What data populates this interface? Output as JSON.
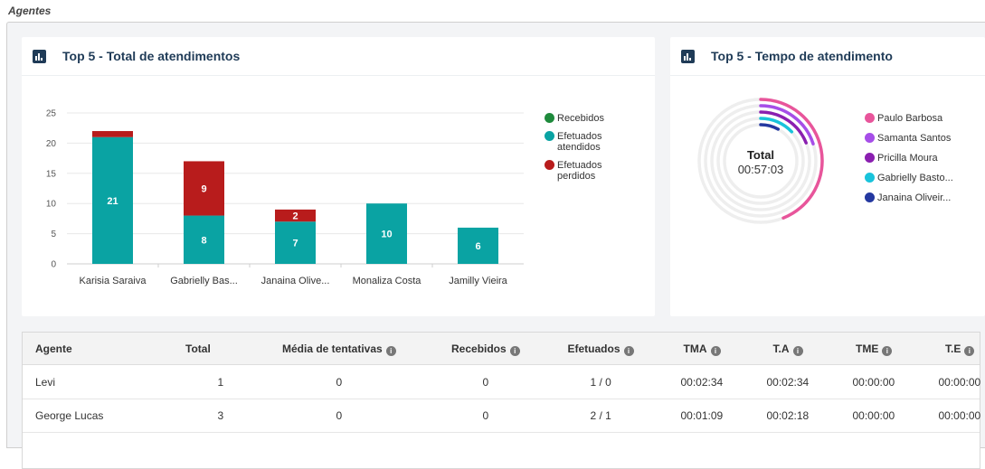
{
  "section_title": "Agentes",
  "card1": {
    "title": "Top 5 - Total de atendimentos",
    "icon": "bar-chart-icon"
  },
  "card2": {
    "title": "Top 5 - Tempo de atendimento",
    "icon": "bar-chart-icon"
  },
  "chart_data": [
    {
      "type": "bar",
      "stacked": true,
      "categories": [
        "Karisia Saraiva",
        "Gabrielly Bas...",
        "Janaina Olive...",
        "Monaliza Costa",
        "Jamilly Vieira"
      ],
      "series": [
        {
          "name": "Recebidos",
          "color": "#1e8a3c",
          "values": [
            0,
            0,
            0,
            0,
            0
          ]
        },
        {
          "name": "Efetuados atendidos",
          "color": "#0aa3a3",
          "values": [
            21,
            8,
            7,
            10,
            6
          ]
        },
        {
          "name": "Efetuados perdidos",
          "color": "#b81c1c",
          "values": [
            1,
            9,
            2,
            0,
            0
          ]
        }
      ],
      "data_labels": [
        [
          "",
          "21",
          ""
        ],
        [
          "",
          "8",
          "9"
        ],
        [
          "",
          "7",
          "2"
        ],
        [
          "",
          "10",
          ""
        ],
        [
          "",
          "6",
          ""
        ]
      ],
      "legend_lines": [
        [
          "Recebidos"
        ],
        [
          "Efetuados",
          "atendidos"
        ],
        [
          "Efetuados",
          "perdidos"
        ]
      ],
      "yticks": [
        "0",
        "5",
        "10",
        "15",
        "20",
        "25"
      ],
      "ylim": [
        0,
        25
      ],
      "legend": "right",
      "grid": true
    },
    {
      "type": "radial",
      "center_label": "Total",
      "center_value": "00:57:03",
      "series": [
        {
          "name": "Paulo Barbosa",
          "color": "#e8559b",
          "fraction": 0.44
        },
        {
          "name": "Samanta Santos",
          "color": "#a64ee8",
          "fraction": 0.2
        },
        {
          "name": "Pricilla Moura",
          "color": "#8a1fb0",
          "fraction": 0.19
        },
        {
          "name": "Gabrielly Basto...",
          "color": "#19c3db",
          "fraction": 0.13
        },
        {
          "name": "Janaina Oliveir...",
          "color": "#2438a0",
          "fraction": 0.08
        }
      ],
      "legend": "right"
    }
  ],
  "table": {
    "headers": [
      {
        "label": "Agente",
        "info": false
      },
      {
        "label": "Total",
        "info": false
      },
      {
        "label": "Média de tentativas",
        "info": true
      },
      {
        "label": "Recebidos",
        "info": true
      },
      {
        "label": "Efetuados",
        "info": true
      },
      {
        "label": "TMA",
        "info": true
      },
      {
        "label": "T.A",
        "info": true
      },
      {
        "label": "TME",
        "info": true
      },
      {
        "label": "T.E",
        "info": true
      }
    ],
    "rows": [
      [
        "Levi",
        "1",
        "0",
        "0",
        "1 / 0",
        "00:02:34",
        "00:02:34",
        "00:00:00",
        "00:00:00"
      ],
      [
        "George Lucas",
        "3",
        "0",
        "0",
        "2 / 1",
        "00:01:09",
        "00:02:18",
        "00:00:00",
        "00:00:00"
      ]
    ]
  }
}
